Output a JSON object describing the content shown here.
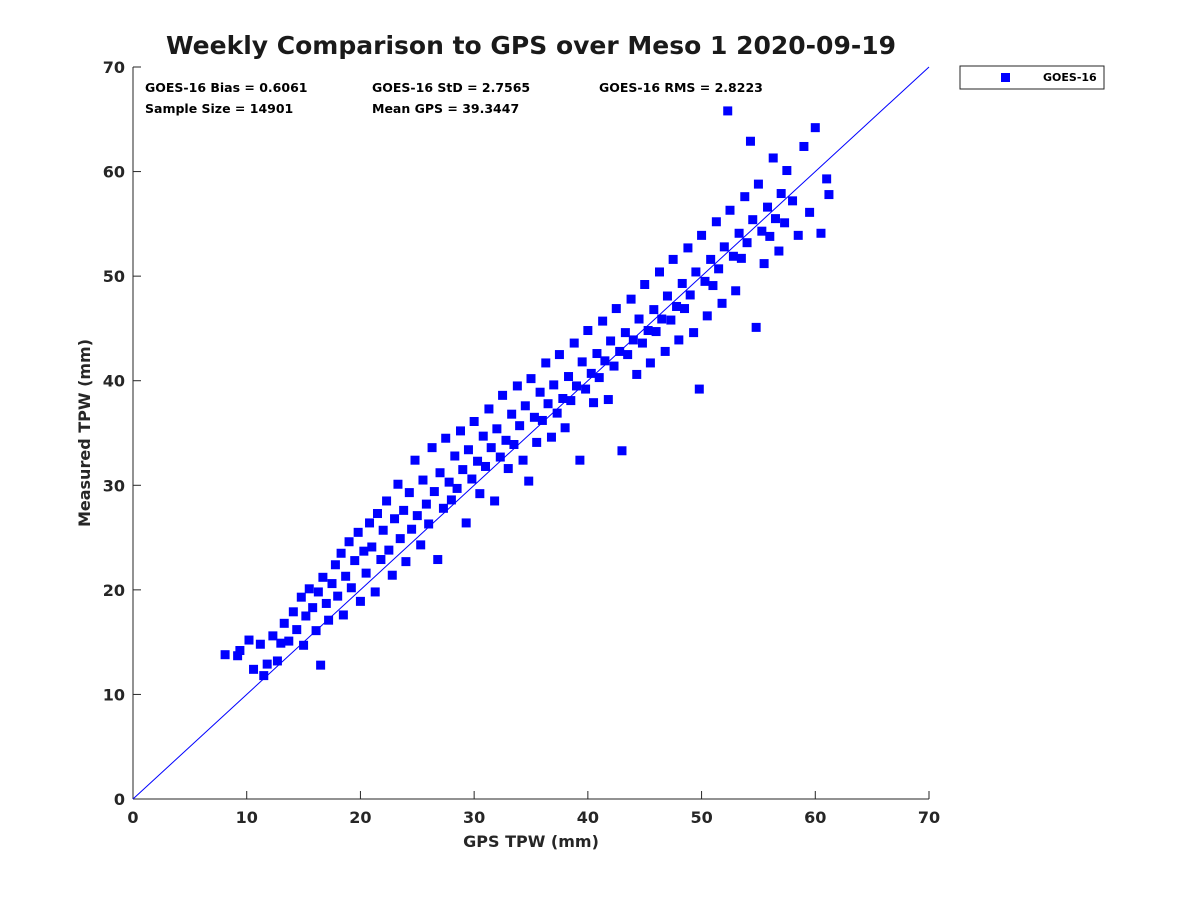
{
  "colors": {
    "marker": "#0000ff",
    "line": "#0000ff",
    "axis": "#262626"
  },
  "stats": {
    "bias": "GOES-16 Bias = 0.6061",
    "std": "GOES-16 StD = 2.7565",
    "rms": "GOES-16 RMS = 2.8223",
    "sample": "Sample Size = 14901",
    "mean": "Mean GPS = 39.3447"
  },
  "chart_data": {
    "type": "scatter",
    "title": "Weekly Comparison to GPS over Meso 1 2020-09-19",
    "xlabel": "GPS TPW (mm)",
    "ylabel": "Measured TPW (mm)",
    "xlim": [
      0,
      70
    ],
    "ylim": [
      0,
      70
    ],
    "xticks": [
      "0",
      "10",
      "20",
      "30",
      "40",
      "50",
      "60",
      "70"
    ],
    "yticks": [
      "0",
      "10",
      "20",
      "30",
      "40",
      "50",
      "60",
      "70"
    ],
    "grid": false,
    "legend_position": "outside-top-right",
    "reference_line": {
      "x": [
        0,
        70
      ],
      "y": [
        0,
        70
      ]
    },
    "series": [
      {
        "name": "GOES-16",
        "marker": "square",
        "points": [
          [
            8.1,
            13.8
          ],
          [
            9.2,
            13.7
          ],
          [
            9.4,
            14.2
          ],
          [
            10.2,
            15.2
          ],
          [
            10.6,
            12.4
          ],
          [
            11.2,
            14.8
          ],
          [
            11.5,
            11.8
          ],
          [
            11.8,
            12.9
          ],
          [
            12.3,
            15.6
          ],
          [
            12.7,
            13.2
          ],
          [
            13.0,
            14.9
          ],
          [
            13.3,
            16.8
          ],
          [
            13.7,
            15.1
          ],
          [
            14.1,
            17.9
          ],
          [
            14.4,
            16.2
          ],
          [
            14.8,
            19.3
          ],
          [
            15.0,
            14.7
          ],
          [
            15.2,
            17.5
          ],
          [
            15.5,
            20.1
          ],
          [
            15.8,
            18.3
          ],
          [
            16.1,
            16.1
          ],
          [
            16.3,
            19.8
          ],
          [
            16.5,
            12.8
          ],
          [
            16.7,
            21.2
          ],
          [
            17.0,
            18.7
          ],
          [
            17.2,
            17.1
          ],
          [
            17.5,
            20.6
          ],
          [
            17.8,
            22.4
          ],
          [
            18.0,
            19.4
          ],
          [
            18.3,
            23.5
          ],
          [
            18.5,
            17.6
          ],
          [
            18.7,
            21.3
          ],
          [
            19.0,
            24.6
          ],
          [
            19.2,
            20.2
          ],
          [
            19.5,
            22.8
          ],
          [
            19.8,
            25.5
          ],
          [
            20.0,
            18.9
          ],
          [
            20.3,
            23.7
          ],
          [
            20.5,
            21.6
          ],
          [
            20.8,
            26.4
          ],
          [
            21.0,
            24.1
          ],
          [
            21.3,
            19.8
          ],
          [
            21.5,
            27.3
          ],
          [
            21.8,
            22.9
          ],
          [
            22.0,
            25.7
          ],
          [
            22.3,
            28.5
          ],
          [
            22.5,
            23.8
          ],
          [
            22.8,
            21.4
          ],
          [
            23.0,
            26.8
          ],
          [
            23.3,
            30.1
          ],
          [
            23.5,
            24.9
          ],
          [
            23.8,
            27.6
          ],
          [
            24.0,
            22.7
          ],
          [
            24.3,
            29.3
          ],
          [
            24.5,
            25.8
          ],
          [
            24.8,
            32.4
          ],
          [
            25.0,
            27.1
          ],
          [
            25.3,
            24.3
          ],
          [
            25.5,
            30.5
          ],
          [
            25.8,
            28.2
          ],
          [
            26.0,
            26.3
          ],
          [
            26.3,
            33.6
          ],
          [
            26.5,
            29.4
          ],
          [
            26.8,
            22.9
          ],
          [
            27.0,
            31.2
          ],
          [
            27.3,
            27.8
          ],
          [
            27.5,
            34.5
          ],
          [
            27.8,
            30.3
          ],
          [
            28.0,
            28.6
          ],
          [
            28.3,
            32.8
          ],
          [
            28.5,
            29.7
          ],
          [
            28.8,
            35.2
          ],
          [
            29.0,
            31.5
          ],
          [
            29.3,
            26.4
          ],
          [
            29.5,
            33.4
          ],
          [
            29.8,
            30.6
          ],
          [
            30.0,
            36.1
          ],
          [
            30.3,
            32.3
          ],
          [
            30.5,
            29.2
          ],
          [
            30.8,
            34.7
          ],
          [
            31.0,
            31.8
          ],
          [
            31.3,
            37.3
          ],
          [
            31.5,
            33.6
          ],
          [
            31.8,
            28.5
          ],
          [
            32.0,
            35.4
          ],
          [
            32.3,
            32.7
          ],
          [
            32.5,
            38.6
          ],
          [
            32.8,
            34.3
          ],
          [
            33.0,
            31.6
          ],
          [
            33.3,
            36.8
          ],
          [
            33.5,
            33.9
          ],
          [
            33.8,
            39.5
          ],
          [
            34.0,
            35.7
          ],
          [
            34.3,
            32.4
          ],
          [
            34.5,
            37.6
          ],
          [
            34.8,
            30.4
          ],
          [
            35.0,
            40.2
          ],
          [
            35.3,
            36.5
          ],
          [
            35.5,
            34.1
          ],
          [
            35.8,
            38.9
          ],
          [
            36.0,
            36.2
          ],
          [
            36.3,
            41.7
          ],
          [
            36.5,
            37.8
          ],
          [
            36.8,
            34.6
          ],
          [
            37.0,
            39.6
          ],
          [
            37.3,
            36.9
          ],
          [
            37.5,
            42.5
          ],
          [
            37.8,
            38.3
          ],
          [
            38.0,
            35.5
          ],
          [
            38.3,
            40.4
          ],
          [
            38.5,
            38.1
          ],
          [
            38.8,
            43.6
          ],
          [
            39.0,
            39.5
          ],
          [
            39.3,
            32.4
          ],
          [
            39.5,
            41.8
          ],
          [
            39.8,
            39.2
          ],
          [
            40.0,
            44.8
          ],
          [
            40.3,
            40.7
          ],
          [
            40.5,
            37.9
          ],
          [
            40.8,
            42.6
          ],
          [
            41.0,
            40.3
          ],
          [
            41.3,
            45.7
          ],
          [
            41.5,
            41.9
          ],
          [
            41.8,
            38.2
          ],
          [
            42.0,
            43.8
          ],
          [
            42.3,
            41.4
          ],
          [
            42.5,
            46.9
          ],
          [
            42.8,
            42.8
          ],
          [
            43.0,
            33.3
          ],
          [
            43.3,
            44.6
          ],
          [
            43.5,
            42.5
          ],
          [
            43.8,
            47.8
          ],
          [
            44.0,
            43.9
          ],
          [
            44.3,
            40.6
          ],
          [
            44.5,
            45.9
          ],
          [
            44.8,
            43.6
          ],
          [
            45.0,
            49.2
          ],
          [
            45.3,
            44.8
          ],
          [
            45.5,
            41.7
          ],
          [
            45.8,
            46.8
          ],
          [
            46.0,
            44.7
          ],
          [
            46.3,
            50.4
          ],
          [
            46.5,
            45.9
          ],
          [
            46.8,
            42.8
          ],
          [
            47.0,
            48.1
          ],
          [
            47.3,
            45.8
          ],
          [
            47.5,
            51.6
          ],
          [
            47.8,
            47.1
          ],
          [
            48.0,
            43.9
          ],
          [
            48.3,
            49.3
          ],
          [
            48.5,
            46.9
          ],
          [
            48.8,
            52.7
          ],
          [
            49.0,
            48.2
          ],
          [
            49.3,
            44.6
          ],
          [
            49.5,
            50.4
          ],
          [
            49.8,
            39.2
          ],
          [
            50.0,
            53.9
          ],
          [
            50.3,
            49.5
          ],
          [
            50.5,
            46.2
          ],
          [
            50.8,
            51.6
          ],
          [
            51.0,
            49.1
          ],
          [
            51.3,
            55.2
          ],
          [
            51.5,
            50.7
          ],
          [
            51.8,
            47.4
          ],
          [
            52.0,
            52.8
          ],
          [
            52.3,
            65.8
          ],
          [
            52.5,
            56.3
          ],
          [
            52.8,
            51.9
          ],
          [
            53.0,
            48.6
          ],
          [
            53.3,
            54.1
          ],
          [
            53.5,
            51.7
          ],
          [
            53.8,
            57.6
          ],
          [
            54.0,
            53.2
          ],
          [
            54.3,
            62.9
          ],
          [
            54.5,
            55.4
          ],
          [
            54.8,
            45.1
          ],
          [
            55.0,
            58.8
          ],
          [
            55.3,
            54.3
          ],
          [
            55.5,
            51.2
          ],
          [
            55.8,
            56.6
          ],
          [
            56.0,
            53.8
          ],
          [
            56.3,
            61.3
          ],
          [
            56.5,
            55.5
          ],
          [
            56.8,
            52.4
          ],
          [
            57.0,
            57.9
          ],
          [
            57.3,
            55.1
          ],
          [
            57.5,
            60.1
          ],
          [
            58.0,
            57.2
          ],
          [
            58.5,
            53.9
          ],
          [
            59.0,
            62.4
          ],
          [
            59.5,
            56.1
          ],
          [
            60.0,
            64.2
          ],
          [
            60.5,
            54.1
          ],
          [
            61.0,
            59.3
          ],
          [
            61.2,
            57.8
          ]
        ]
      }
    ]
  }
}
